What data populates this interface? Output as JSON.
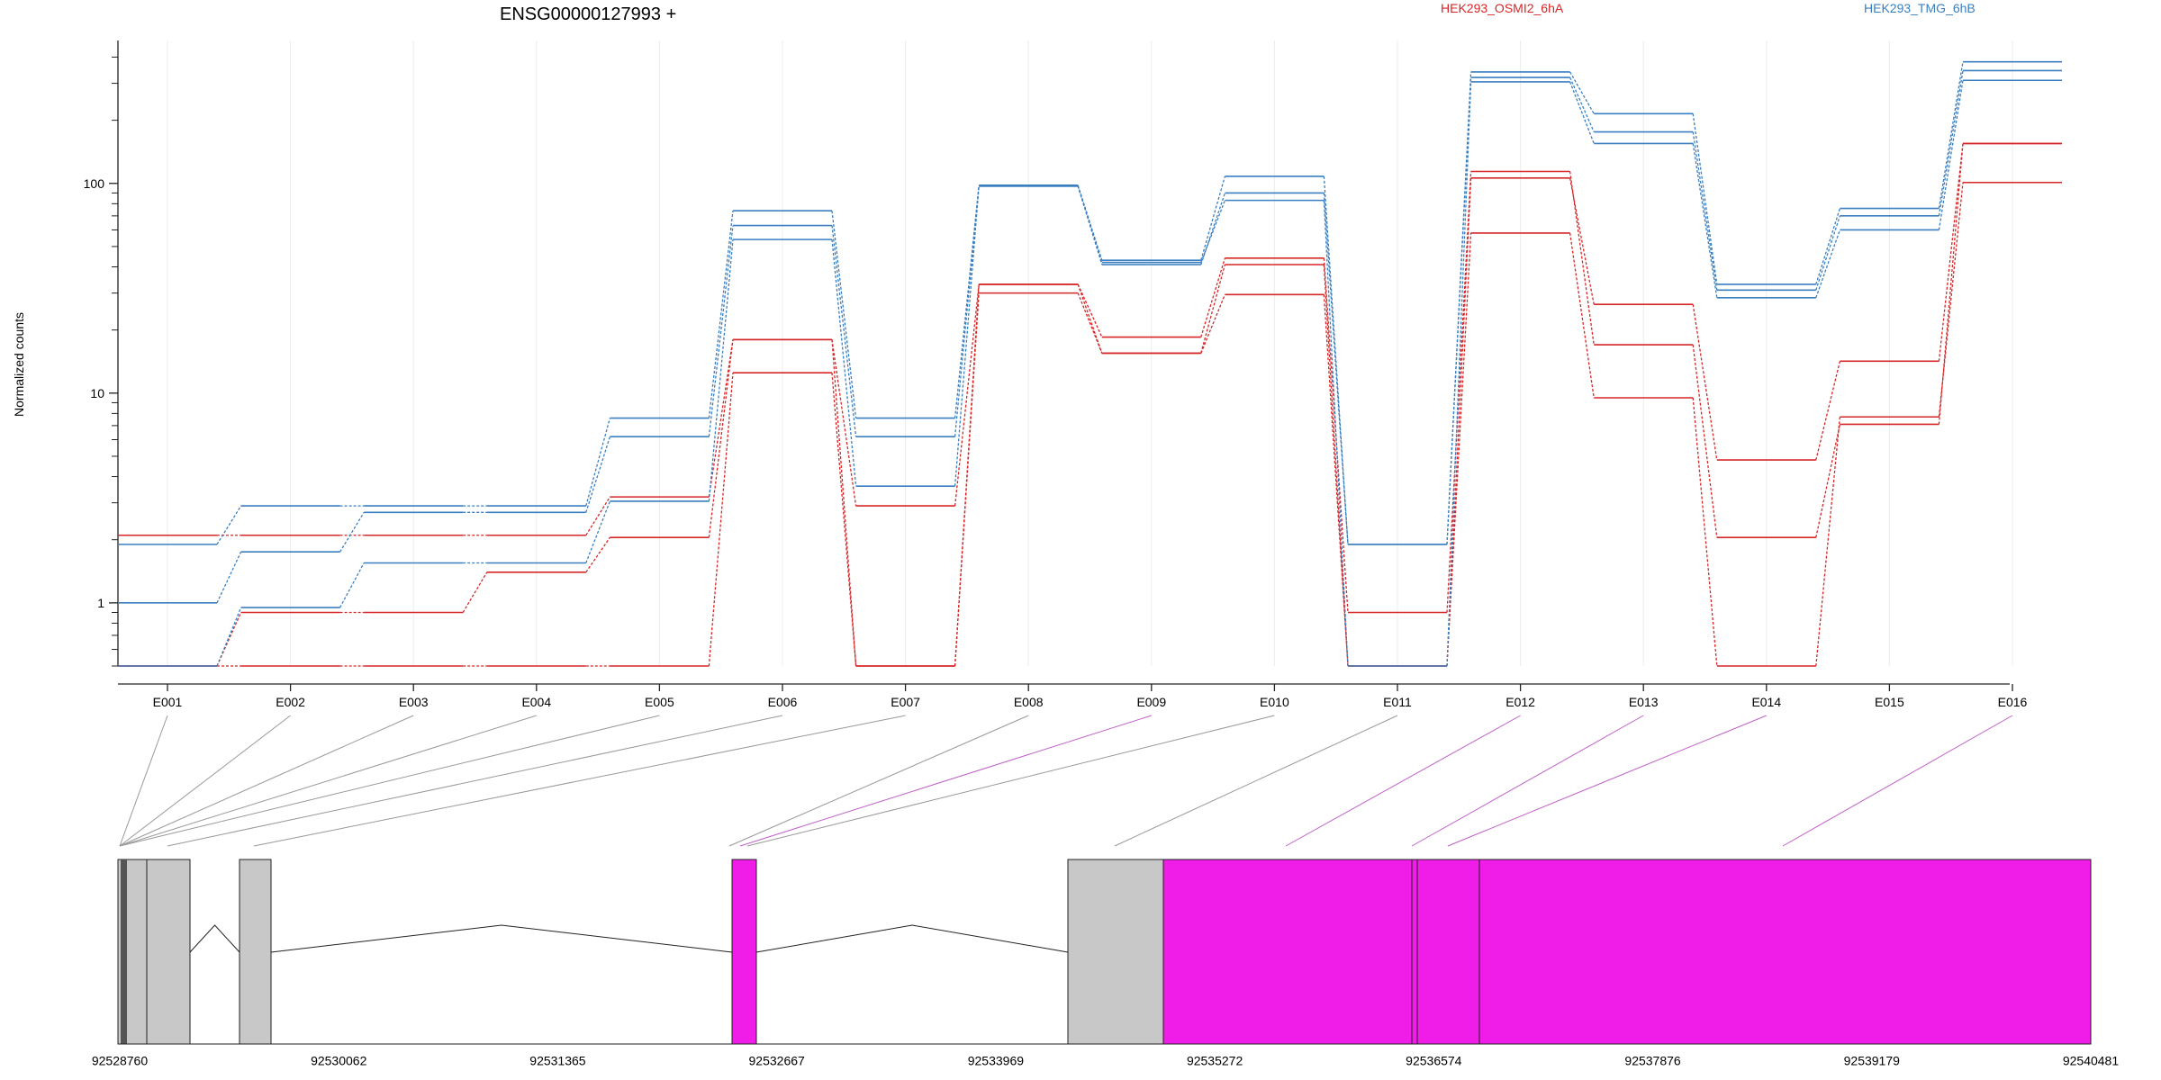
{
  "chart_data": {
    "type": "line",
    "title": "ENSG00000127993 +",
    "ylabel": "Normalized counts",
    "yscale": "log",
    "ylim": [
      0.5,
      480
    ],
    "yticks": [
      1,
      10,
      100
    ],
    "ytick_labels": [
      "1",
      "10",
      "100"
    ],
    "grid": true,
    "legend_position": "top",
    "categories": [
      "E001",
      "E002",
      "E003",
      "E004",
      "E005",
      "E006",
      "E007",
      "E008",
      "E009",
      "E010",
      "E011",
      "E012",
      "E013",
      "E014",
      "E015",
      "E016"
    ],
    "series": [
      {
        "name": "HEK293_OSMI2_6hA",
        "color": "#d62728",
        "values": [
          2.1,
          2.1,
          2.1,
          2.1,
          3.2,
          18,
          2.9,
          33,
          15.5,
          41,
          0.5,
          106,
          26.5,
          4.8,
          14.2,
          155
        ]
      },
      {
        "name": "",
        "color": "#d62728",
        "values": [
          0.5,
          0.9,
          0.9,
          1.4,
          2.05,
          18,
          0.5,
          33,
          18.5,
          44,
          0.9,
          114,
          17,
          2.05,
          7.1,
          155
        ]
      },
      {
        "name": "",
        "color": "#d62728",
        "values": [
          0.5,
          0.5,
          0.5,
          0.5,
          0.5,
          12.5,
          0.5,
          30,
          15.5,
          29.5,
          0.5,
          58,
          9.5,
          0.5,
          7.7,
          101
        ]
      },
      {
        "name": "HEK293_TMG_6hB",
        "color": "#3a7fc0",
        "values": [
          1.9,
          2.9,
          2.9,
          2.9,
          7.6,
          74,
          7.6,
          98,
          43,
          108,
          1.9,
          340,
          215,
          33,
          76,
          380
        ]
      },
      {
        "name": "",
        "color": "#3a7fc0",
        "values": [
          1.0,
          1.75,
          2.7,
          2.7,
          6.2,
          63,
          6.2,
          97,
          41,
          90,
          1.9,
          320,
          176,
          31,
          70,
          345
        ]
      },
      {
        "name": "",
        "color": "#3a7fc0",
        "values": [
          0.5,
          0.95,
          1.55,
          1.55,
          3.05,
          54,
          3.6,
          97,
          42,
          83,
          0.5,
          305,
          155,
          28.5,
          60,
          310
        ]
      }
    ],
    "gene_model": {
      "coordinate_labels": [
        "92528760",
        "92530062",
        "92531365",
        "92532667",
        "92533969",
        "92535272",
        "92536574",
        "92537876",
        "92539179",
        "92540481"
      ],
      "bin_colors": {
        "constitutive": "#c8c8c8",
        "tested": "#f01ce8"
      }
    }
  }
}
